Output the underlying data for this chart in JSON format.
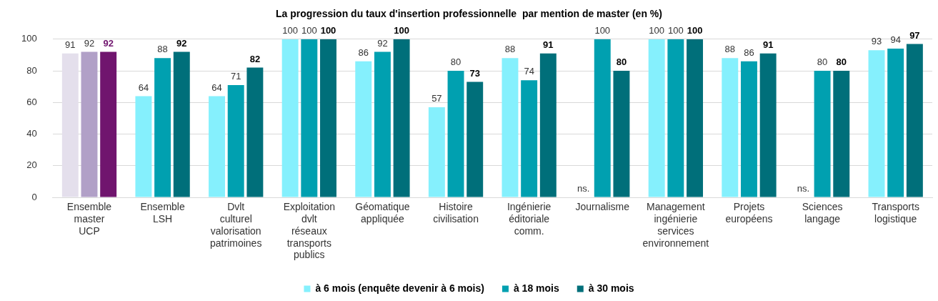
{
  "chart_data": {
    "type": "bar",
    "title": "La progression du taux d'insertion professionnelle  par mention de master (en %)",
    "categories": [
      "Ensemble master UCP",
      "Ensemble LSH",
      "Dvlt culturel valorisation patrimoines",
      "Exploitation dvlt réseaux transports publics",
      "Géomatique appliquée",
      "Histoire civilisation",
      "Ingénierie éditoriale comm.",
      "Journalisme",
      "Management ingénierie services environnement",
      "Projets européens",
      "Sciences langage",
      "Transports logistique"
    ],
    "series": [
      {
        "name": "à 6 mois (enquête devenir à 6 mois)",
        "color": "#85f0fd",
        "colors": [
          "#e4dfec",
          "#85f0fd",
          "#85f0fd",
          "#85f0fd",
          "#85f0fd",
          "#85f0fd",
          "#85f0fd",
          "#85f0fd",
          "#85f0fd",
          "#85f0fd",
          "#85f0fd",
          "#85f0fd"
        ],
        "values": [
          91,
          64,
          64,
          100,
          86,
          57,
          88,
          null,
          100,
          88,
          null,
          93
        ],
        "value_labels": [
          "91",
          "64",
          "64",
          "100",
          "86",
          "57",
          "88",
          "ns.",
          "100",
          "88",
          "ns.",
          "93"
        ]
      },
      {
        "name": "à 18 mois",
        "color": "#00a0b0",
        "colors": [
          "#b1a0c7",
          "#00a0b0",
          "#00a0b0",
          "#00a0b0",
          "#00a0b0",
          "#00a0b0",
          "#00a0b0",
          "#00a0b0",
          "#00a0b0",
          "#00a0b0",
          "#00a0b0",
          "#00a0b0"
        ],
        "values": [
          92,
          88,
          71,
          100,
          92,
          80,
          74,
          100,
          100,
          86,
          80,
          94
        ]
      },
      {
        "name": "à 30 mois",
        "color": "#006f7a",
        "colors": [
          "#70156e",
          "#006f7a",
          "#006f7a",
          "#006f7a",
          "#006f7a",
          "#006f7a",
          "#006f7a",
          "#006f7a",
          "#006f7a",
          "#006f7a",
          "#006f7a",
          "#006f7a"
        ],
        "values": [
          92,
          92,
          82,
          100,
          100,
          73,
          91,
          80,
          100,
          91,
          80,
          97
        ]
      }
    ],
    "data_labels": true,
    "ylim": [
      0,
      100
    ],
    "yticks": [
      0,
      20,
      40,
      60,
      80,
      100
    ],
    "grid": "y",
    "legend": "bottom"
  }
}
